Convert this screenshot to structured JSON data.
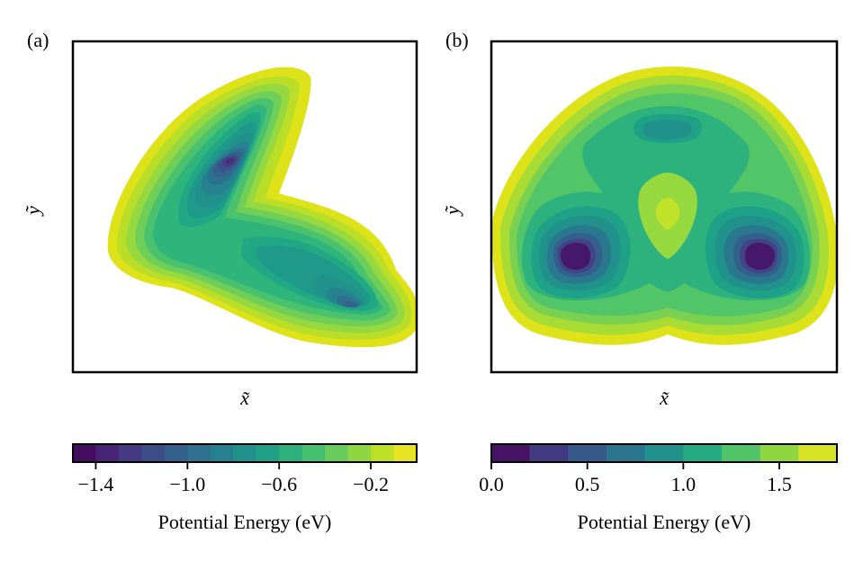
{
  "chart_data": [
    {
      "type": "contour",
      "panel": "(a)",
      "xlabel": "x̃",
      "ylabel": "ỹ",
      "colorbar": {
        "label": "Potential Energy (eV)",
        "min": -1.5,
        "max": -0.0,
        "levels": 15,
        "ticks": [
          -1.4,
          -1.0,
          -0.6,
          -0.2
        ],
        "tick_labels": [
          "−1.4",
          "−1.0",
          "−0.6",
          "−0.2"
        ]
      },
      "description_minima": [
        {
          "name": "upper-left minimum",
          "value": -1.45
        },
        {
          "name": "lower-right minimum",
          "value": -1.2
        },
        {
          "name": "central basin",
          "value": -0.7
        }
      ]
    },
    {
      "type": "contour",
      "panel": "(b)",
      "xlabel": "x̃",
      "ylabel": "ỹ",
      "colorbar": {
        "label": "Potential Energy (eV)",
        "min": 0.0,
        "max": 1.8,
        "levels": 9,
        "ticks": [
          0.0,
          0.5,
          1.0,
          1.5
        ],
        "tick_labels": [
          "0.0",
          "0.5",
          "1.0",
          "1.5"
        ]
      },
      "description_minima": [
        {
          "name": "left minimum",
          "value": 0.0
        },
        {
          "name": "right minimum",
          "value": 0.0
        },
        {
          "name": "top local minimum",
          "value": 0.9
        },
        {
          "name": "center maximum",
          "value": 1.7
        }
      ]
    }
  ],
  "colors": {
    "viridis_a": [
      "#440154",
      "#482475",
      "#414487",
      "#355f8d",
      "#2a788e",
      "#21918c",
      "#22a884",
      "#44bf70",
      "#7ad151",
      "#bddf26",
      "#fde725"
    ],
    "frame": "#000000"
  }
}
